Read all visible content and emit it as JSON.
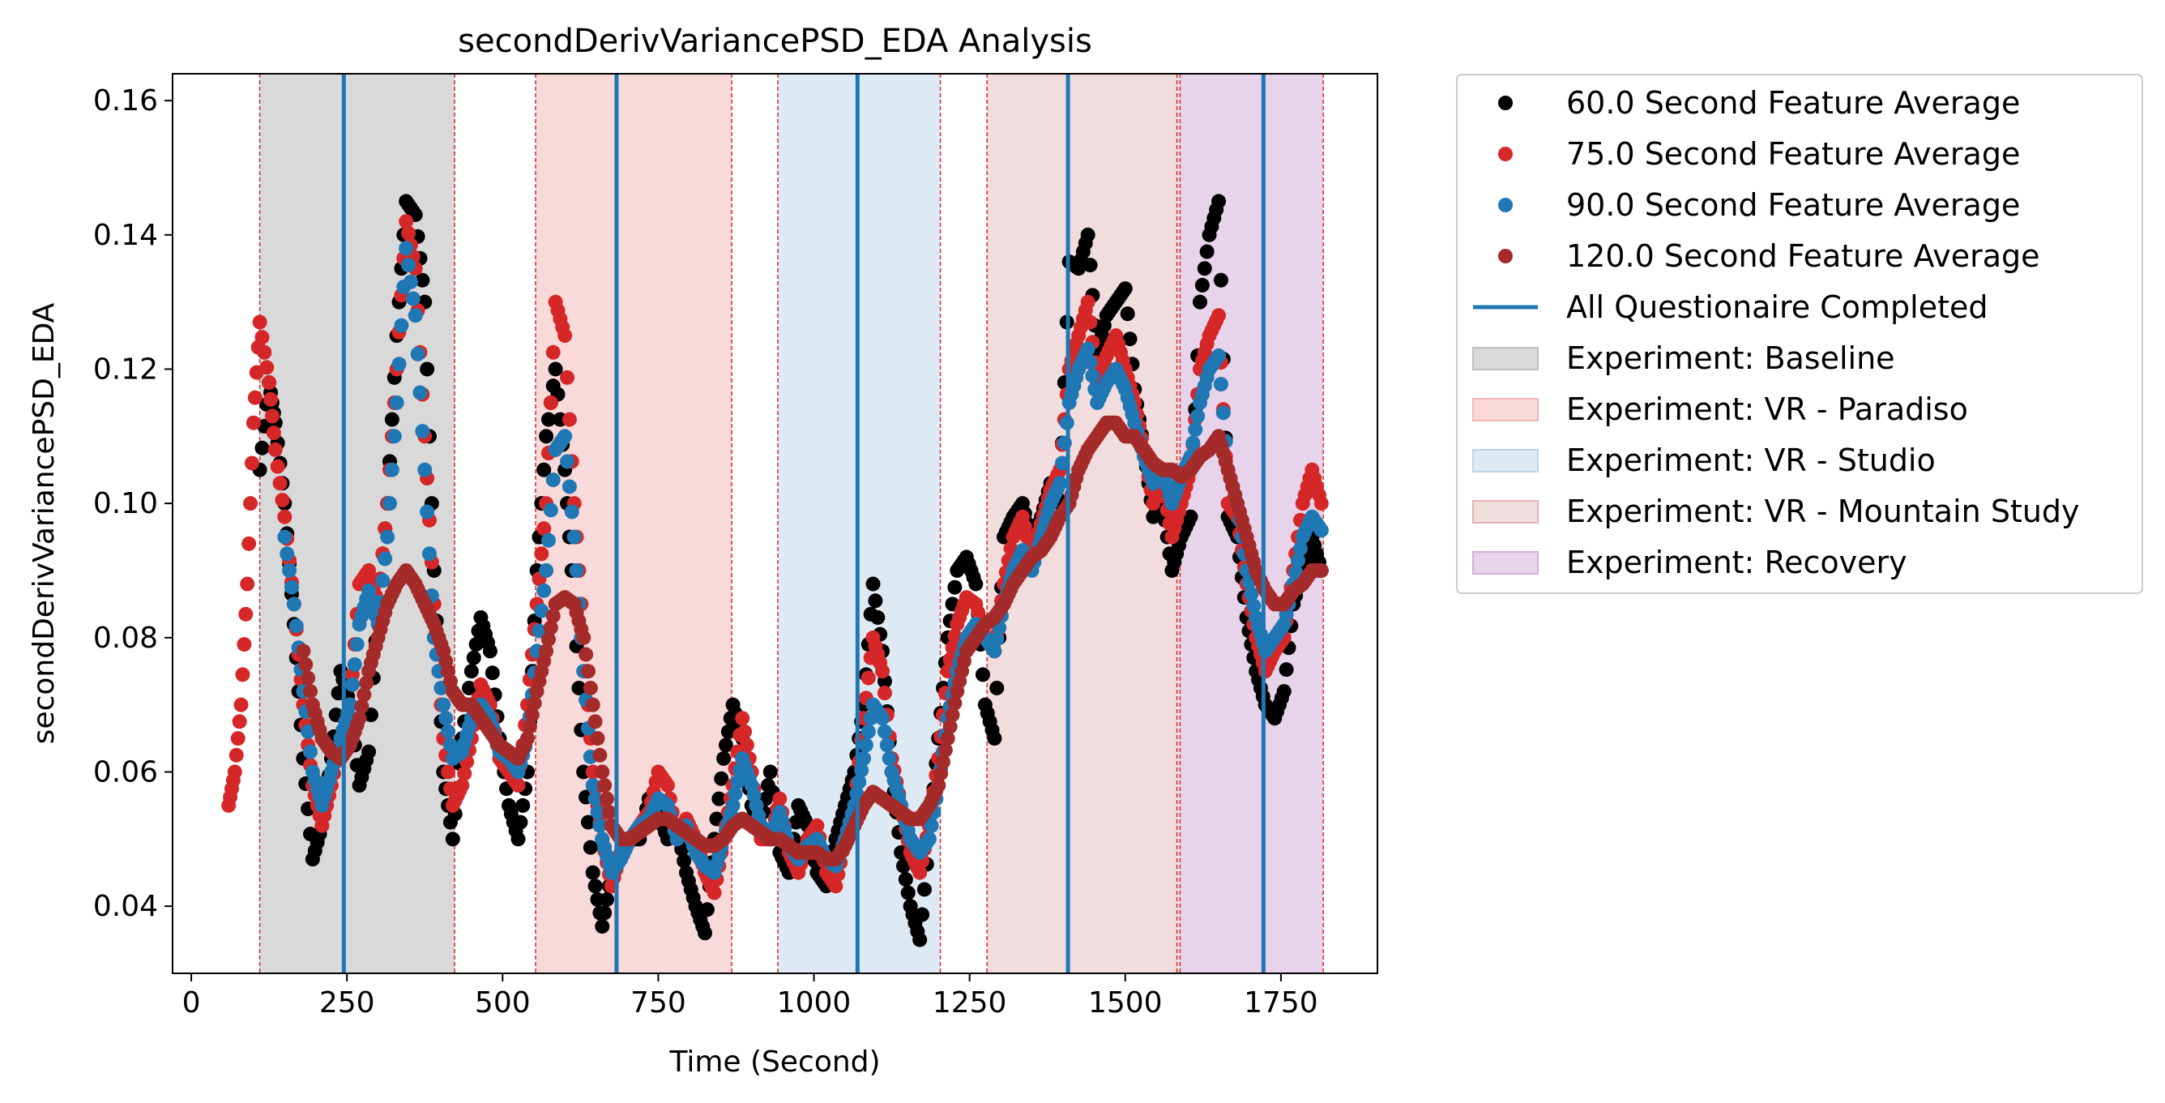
{
  "chart_data": {
    "type": "scatter",
    "title": "secondDerivVariancePSD_EDA Analysis",
    "xlabel": "Time (Second)",
    "ylabel": "secondDerivVariancePSD_EDA",
    "xlim": [
      -30,
      1905
    ],
    "ylim": [
      0.03,
      0.164
    ],
    "x_ticks": [
      0,
      250,
      500,
      750,
      1000,
      1250,
      1500,
      1750
    ],
    "y_ticks": [
      0.04,
      0.06,
      0.08,
      0.1,
      0.12,
      0.14,
      0.16
    ],
    "x_tick_labels": [
      "0",
      "250",
      "500",
      "750",
      "1000",
      "1250",
      "1500",
      "1750"
    ],
    "y_tick_labels": [
      "0.04",
      "0.06",
      "0.08",
      "0.10",
      "0.12",
      "0.14",
      "0.16"
    ],
    "grid": false,
    "legend_position": "outside-right",
    "series": [
      {
        "name": "60.0 Second Feature Average",
        "color": "#000000",
        "x": [
          110,
          125,
          135,
          150,
          165,
          180,
          195,
          210,
          225,
          240,
          255,
          270,
          285,
          300,
          315,
          330,
          345,
          360,
          375,
          390,
          405,
          420,
          435,
          450,
          465,
          480,
          495,
          510,
          525,
          540,
          555,
          570,
          585,
          600,
          615,
          630,
          645,
          660,
          675,
          690,
          705,
          720,
          735,
          750,
          765,
          780,
          795,
          810,
          825,
          840,
          855,
          870,
          885,
          900,
          915,
          930,
          945,
          960,
          975,
          990,
          1005,
          1020,
          1035,
          1050,
          1065,
          1080,
          1095,
          1110,
          1125,
          1140,
          1155,
          1170,
          1185,
          1200,
          1215,
          1230,
          1245,
          1260,
          1275,
          1290,
          1305,
          1320,
          1335,
          1350,
          1365,
          1380,
          1395,
          1410,
          1425,
          1440,
          1455,
          1470,
          1485,
          1500,
          1515,
          1530,
          1545,
          1560,
          1575,
          1590,
          1605,
          1620,
          1635,
          1650,
          1665,
          1680,
          1695,
          1710,
          1725,
          1740,
          1755,
          1770,
          1785,
          1800,
          1815
        ],
        "y": [
          0.105,
          0.118,
          0.112,
          0.1,
          0.082,
          0.062,
          0.047,
          0.052,
          0.062,
          0.075,
          0.07,
          0.058,
          0.063,
          0.085,
          0.1,
          0.125,
          0.145,
          0.143,
          0.13,
          0.09,
          0.06,
          0.05,
          0.065,
          0.075,
          0.083,
          0.078,
          0.065,
          0.055,
          0.05,
          0.06,
          0.09,
          0.11,
          0.12,
          0.105,
          0.085,
          0.06,
          0.045,
          0.037,
          0.045,
          0.048,
          0.05,
          0.05,
          0.056,
          0.054,
          0.05,
          0.052,
          0.045,
          0.04,
          0.036,
          0.05,
          0.062,
          0.07,
          0.065,
          0.055,
          0.052,
          0.06,
          0.048,
          0.045,
          0.055,
          0.052,
          0.045,
          0.043,
          0.05,
          0.055,
          0.06,
          0.07,
          0.088,
          0.078,
          0.06,
          0.048,
          0.04,
          0.035,
          0.05,
          0.065,
          0.08,
          0.09,
          0.092,
          0.088,
          0.07,
          0.065,
          0.095,
          0.098,
          0.1,
          0.094,
          0.098,
          0.103,
          0.1,
          0.136,
          0.135,
          0.14,
          0.122,
          0.128,
          0.13,
          0.132,
          0.117,
          0.108,
          0.098,
          0.1,
          0.09,
          0.095,
          0.098,
          0.13,
          0.14,
          0.145,
          0.098,
          0.095,
          0.083,
          0.075,
          0.07,
          0.068,
          0.072,
          0.085,
          0.09,
          0.095,
          0.09
        ]
      },
      {
        "name": "75.0 Second Feature Average",
        "color": "#d62728",
        "x": [
          60,
          70,
          80,
          90,
          100,
          110,
          125,
          135,
          150,
          165,
          180,
          195,
          210,
          225,
          240,
          255,
          270,
          285,
          300,
          315,
          330,
          345,
          360,
          375,
          390,
          405,
          420,
          435,
          450,
          465,
          480,
          495,
          510,
          525,
          540,
          555,
          570,
          585,
          600,
          615,
          630,
          645,
          660,
          675,
          690,
          705,
          720,
          735,
          750,
          765,
          780,
          795,
          810,
          825,
          840,
          855,
          870,
          885,
          900,
          915,
          930,
          945,
          960,
          975,
          990,
          1005,
          1020,
          1035,
          1050,
          1065,
          1080,
          1095,
          1110,
          1125,
          1140,
          1155,
          1170,
          1185,
          1200,
          1215,
          1230,
          1245,
          1260,
          1275,
          1290,
          1305,
          1320,
          1335,
          1350,
          1365,
          1380,
          1395,
          1410,
          1425,
          1440,
          1455,
          1470,
          1485,
          1500,
          1515,
          1530,
          1545,
          1560,
          1575,
          1590,
          1605,
          1620,
          1635,
          1650,
          1665,
          1680,
          1695,
          1710,
          1725,
          1740,
          1755,
          1770,
          1785,
          1800,
          1815
        ],
        "y": [
          0.055,
          0.06,
          0.07,
          0.088,
          0.112,
          0.127,
          0.118,
          0.108,
          0.098,
          0.085,
          0.07,
          0.058,
          0.052,
          0.058,
          0.065,
          0.07,
          0.088,
          0.09,
          0.085,
          0.1,
          0.12,
          0.142,
          0.135,
          0.11,
          0.085,
          0.065,
          0.055,
          0.058,
          0.065,
          0.073,
          0.07,
          0.062,
          0.06,
          0.058,
          0.07,
          0.085,
          0.1,
          0.13,
          0.125,
          0.1,
          0.08,
          0.06,
          0.05,
          0.043,
          0.048,
          0.05,
          0.052,
          0.054,
          0.06,
          0.058,
          0.05,
          0.053,
          0.05,
          0.045,
          0.042,
          0.05,
          0.058,
          0.068,
          0.06,
          0.05,
          0.05,
          0.056,
          0.048,
          0.045,
          0.05,
          0.052,
          0.045,
          0.043,
          0.05,
          0.055,
          0.068,
          0.08,
          0.075,
          0.062,
          0.055,
          0.048,
          0.045,
          0.052,
          0.062,
          0.075,
          0.082,
          0.086,
          0.085,
          0.08,
          0.078,
          0.088,
          0.095,
          0.098,
          0.092,
          0.097,
          0.102,
          0.105,
          0.12,
          0.125,
          0.13,
          0.118,
          0.122,
          0.125,
          0.12,
          0.115,
          0.108,
          0.1,
          0.103,
          0.095,
          0.1,
          0.105,
          0.12,
          0.125,
          0.128,
          0.1,
          0.098,
          0.088,
          0.08,
          0.075,
          0.078,
          0.08,
          0.09,
          0.1,
          0.105,
          0.1
        ]
      },
      {
        "name": "90.0 Second Feature Average",
        "color": "#1f77b4",
        "x": [
          150,
          165,
          180,
          195,
          210,
          225,
          240,
          255,
          270,
          285,
          300,
          315,
          330,
          345,
          360,
          375,
          390,
          405,
          420,
          435,
          450,
          465,
          480,
          495,
          510,
          525,
          540,
          555,
          570,
          585,
          600,
          615,
          630,
          645,
          660,
          675,
          690,
          705,
          720,
          735,
          750,
          765,
          780,
          795,
          810,
          825,
          840,
          855,
          870,
          885,
          900,
          915,
          930,
          945,
          960,
          975,
          990,
          1005,
          1020,
          1035,
          1050,
          1065,
          1080,
          1095,
          1110,
          1125,
          1140,
          1155,
          1170,
          1185,
          1200,
          1215,
          1230,
          1245,
          1260,
          1275,
          1290,
          1305,
          1320,
          1335,
          1350,
          1365,
          1380,
          1395,
          1410,
          1425,
          1440,
          1455,
          1470,
          1485,
          1500,
          1515,
          1530,
          1545,
          1560,
          1575,
          1590,
          1605,
          1620,
          1635,
          1650,
          1665,
          1680,
          1695,
          1710,
          1725,
          1740,
          1755,
          1770,
          1785,
          1800,
          1815
        ],
        "y": [
          0.095,
          0.085,
          0.072,
          0.06,
          0.055,
          0.06,
          0.065,
          0.07,
          0.082,
          0.087,
          0.082,
          0.095,
          0.115,
          0.138,
          0.128,
          0.105,
          0.08,
          0.07,
          0.062,
          0.063,
          0.068,
          0.07,
          0.068,
          0.063,
          0.062,
          0.06,
          0.065,
          0.078,
          0.09,
          0.108,
          0.11,
          0.095,
          0.075,
          0.058,
          0.05,
          0.045,
          0.047,
          0.05,
          0.052,
          0.053,
          0.056,
          0.055,
          0.05,
          0.052,
          0.048,
          0.046,
          0.045,
          0.05,
          0.055,
          0.062,
          0.058,
          0.052,
          0.05,
          0.054,
          0.049,
          0.047,
          0.049,
          0.05,
          0.047,
          0.046,
          0.05,
          0.055,
          0.062,
          0.07,
          0.068,
          0.06,
          0.055,
          0.05,
          0.048,
          0.05,
          0.058,
          0.068,
          0.075,
          0.08,
          0.082,
          0.08,
          0.078,
          0.085,
          0.09,
          0.093,
          0.09,
          0.095,
          0.1,
          0.103,
          0.115,
          0.12,
          0.123,
          0.115,
          0.118,
          0.12,
          0.117,
          0.112,
          0.107,
          0.103,
          0.105,
          0.1,
          0.104,
          0.107,
          0.115,
          0.12,
          0.122,
          0.105,
          0.1,
          0.09,
          0.083,
          0.078,
          0.08,
          0.082,
          0.088,
          0.095,
          0.098,
          0.096
        ]
      },
      {
        "name": "120.0 Second Feature Average",
        "color": "#a52a2a",
        "x": [
          180,
          195,
          210,
          225,
          240,
          255,
          270,
          285,
          300,
          315,
          330,
          345,
          360,
          375,
          390,
          405,
          420,
          435,
          450,
          465,
          480,
          495,
          510,
          525,
          540,
          555,
          570,
          585,
          600,
          615,
          630,
          645,
          660,
          675,
          690,
          705,
          720,
          735,
          750,
          765,
          780,
          795,
          810,
          825,
          840,
          855,
          870,
          885,
          900,
          915,
          930,
          945,
          960,
          975,
          990,
          1005,
          1020,
          1035,
          1050,
          1065,
          1080,
          1095,
          1110,
          1125,
          1140,
          1155,
          1170,
          1185,
          1200,
          1215,
          1230,
          1245,
          1260,
          1275,
          1290,
          1305,
          1320,
          1335,
          1350,
          1365,
          1380,
          1395,
          1410,
          1425,
          1440,
          1455,
          1470,
          1485,
          1500,
          1515,
          1530,
          1545,
          1560,
          1575,
          1590,
          1605,
          1620,
          1635,
          1650,
          1665,
          1680,
          1695,
          1710,
          1725,
          1740,
          1755,
          1770,
          1785,
          1800,
          1815
        ],
        "y": [
          0.078,
          0.07,
          0.065,
          0.063,
          0.062,
          0.064,
          0.068,
          0.075,
          0.08,
          0.085,
          0.088,
          0.09,
          0.088,
          0.085,
          0.082,
          0.078,
          0.072,
          0.07,
          0.07,
          0.068,
          0.066,
          0.064,
          0.063,
          0.062,
          0.065,
          0.072,
          0.078,
          0.085,
          0.086,
          0.085,
          0.08,
          0.07,
          0.06,
          0.052,
          0.05,
          0.05,
          0.051,
          0.052,
          0.053,
          0.053,
          0.052,
          0.051,
          0.05,
          0.049,
          0.049,
          0.05,
          0.052,
          0.053,
          0.052,
          0.051,
          0.05,
          0.05,
          0.049,
          0.048,
          0.048,
          0.048,
          0.047,
          0.047,
          0.049,
          0.052,
          0.055,
          0.057,
          0.056,
          0.055,
          0.054,
          0.053,
          0.053,
          0.055,
          0.058,
          0.065,
          0.072,
          0.078,
          0.08,
          0.082,
          0.083,
          0.085,
          0.088,
          0.09,
          0.092,
          0.093,
          0.095,
          0.098,
          0.1,
          0.105,
          0.108,
          0.11,
          0.112,
          0.112,
          0.11,
          0.11,
          0.108,
          0.106,
          0.105,
          0.105,
          0.104,
          0.105,
          0.107,
          0.108,
          0.11,
          0.105,
          0.1,
          0.095,
          0.09,
          0.087,
          0.085,
          0.085,
          0.087,
          0.088,
          0.09,
          0.09
        ]
      }
    ],
    "questionnaire_line": {
      "name": "All Questionaire Completed",
      "color": "#1f77b4",
      "x": [
        245,
        683,
        1070,
        1408,
        1722
      ]
    },
    "regions": [
      {
        "name": "Experiment: Baseline",
        "start": 110,
        "end": 423,
        "color": "#bfbfbf",
        "opacity": 0.6
      },
      {
        "name": "Experiment: VR - Paradiso",
        "start": 553,
        "end": 868,
        "color": "#f4b6b6",
        "opacity": 0.5
      },
      {
        "name": "Experiment: VR - Studio",
        "start": 942,
        "end": 1203,
        "color": "#bcd4e8",
        "opacity": 0.5
      },
      {
        "name": "Experiment: VR - Mountain Study",
        "start": 1278,
        "end": 1588,
        "color": "#dfb3b3",
        "opacity": 0.45
      },
      {
        "name": "Experiment: Recovery",
        "start": 1588,
        "end": 1818,
        "color": "#d3aed8",
        "opacity": 0.55
      }
    ],
    "boundary_lines": [
      110,
      423,
      553,
      868,
      942,
      1203,
      1278,
      1583,
      1588,
      1818
    ]
  }
}
